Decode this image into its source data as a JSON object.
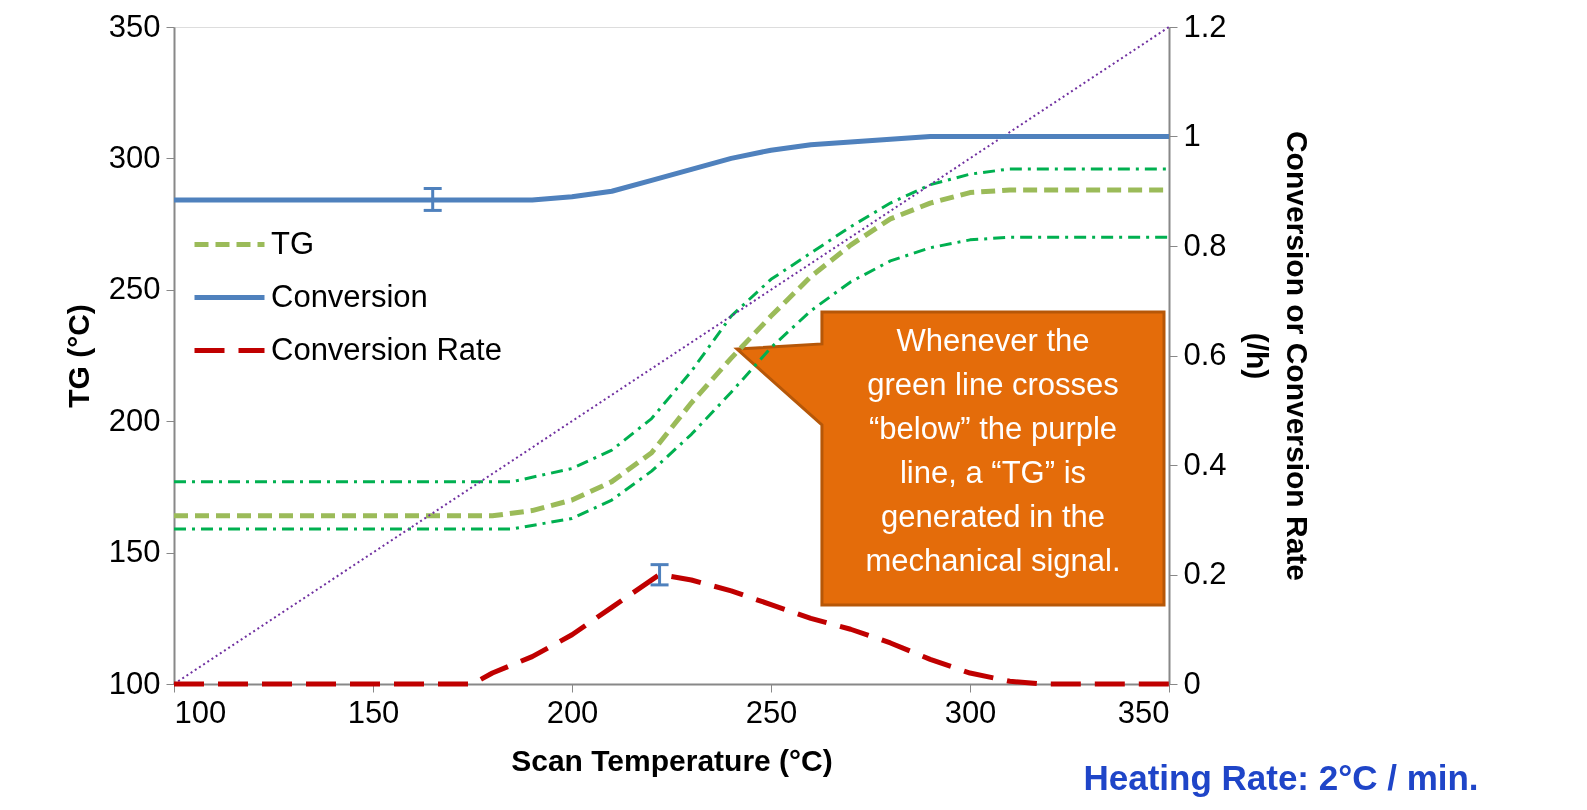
{
  "chart_data": {
    "type": "line",
    "xlabel": "Scan Temperature (°C)",
    "ylabel": "TG (°C)",
    "y2label": "Conversion or Conversion Rate (/h)",
    "xlim": [
      100,
      350
    ],
    "xticks": [
      100,
      150,
      200,
      250,
      300,
      350
    ],
    "ylim": [
      100,
      350
    ],
    "yticks": [
      100,
      150,
      200,
      250,
      300,
      350
    ],
    "y2lim": [
      0,
      1.2
    ],
    "y2ticks": [
      0,
      0.2,
      0.4,
      0.6,
      0.8,
      1,
      1.2
    ],
    "grid": false,
    "legend": "top left",
    "marker": "none",
    "series": [
      {
        "name": "TG",
        "color": "#9bbb59",
        "line_style": "dashed",
        "x": [
          100,
          180,
          190,
          200,
          210,
          220,
          230,
          240,
          250,
          260,
          270,
          280,
          290,
          300,
          310,
          350
        ],
        "values": [
          164,
          164,
          166,
          170,
          177,
          188,
          207,
          224,
          240,
          255,
          267,
          277,
          283,
          287,
          288,
          288
        ]
      },
      {
        "color": "#00b050",
        "line_style": "dashdot",
        "x": [
          100,
          185,
          200,
          210,
          220,
          230,
          240,
          250,
          260,
          270,
          280,
          290,
          300,
          310,
          350
        ],
        "values": [
          177,
          177,
          182,
          189,
          201,
          219,
          240,
          254,
          264,
          274,
          283,
          290,
          294,
          296,
          296
        ]
      },
      {
        "color": "#00b050",
        "line_style": "dashdot",
        "x": [
          100,
          185,
          200,
          210,
          220,
          230,
          240,
          250,
          260,
          270,
          280,
          290,
          300,
          310,
          350
        ],
        "values": [
          159,
          159,
          163,
          170,
          181,
          195,
          211,
          228,
          242,
          253,
          261,
          266,
          269,
          270,
          270
        ]
      },
      {
        "color": "#7030a0",
        "line_style": "dotted",
        "x": [
          100,
          350
        ],
        "values": [
          100,
          350
        ]
      },
      {
        "name": "Conversion",
        "color": "#4f81bd",
        "line_style": "solid",
        "axis": "y2",
        "x": [
          100,
          165,
          190,
          200,
          210,
          220,
          230,
          240,
          250,
          260,
          270,
          280,
          290,
          300,
          350
        ],
        "values": [
          0.884,
          0.884,
          0.884,
          0.89,
          0.9,
          0.92,
          0.94,
          0.96,
          0.975,
          0.985,
          0.99,
          0.995,
          1,
          1,
          1
        ],
        "errors": [
          null,
          [
            0.865,
            0.905
          ],
          null,
          null,
          null,
          null,
          null,
          null,
          null,
          null,
          null,
          null,
          null,
          null,
          null
        ]
      },
      {
        "name": "Conversion Rate",
        "color": "#c00000",
        "line_style": "long_dashed",
        "axis": "y2",
        "x": [
          100,
          175,
          180,
          190,
          200,
          210,
          222,
          230,
          240,
          250,
          260,
          270,
          280,
          290,
          300,
          310,
          318,
          350
        ],
        "values": [
          0,
          0,
          0.02,
          0.05,
          0.09,
          0.14,
          0.2,
          0.19,
          0.17,
          0.145,
          0.12,
          0.1,
          0.075,
          0.045,
          0.02,
          0.005,
          0,
          0
        ],
        "errors": [
          null,
          null,
          null,
          null,
          null,
          null,
          [
            0.181,
            0.218
          ],
          null,
          null,
          null,
          null,
          null,
          null,
          null,
          null,
          null,
          null,
          null
        ]
      }
    ],
    "annotations": [
      "Whenever the\ngreen line crosses\n“below” the purple\nline, a “TG” is\ngenerated in the\nmechanical signal.",
      "Heating Rate:  2°C / min."
    ]
  }
}
